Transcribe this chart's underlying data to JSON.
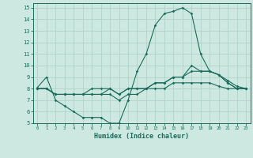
{
  "title": "",
  "xlabel": "Humidex (Indice chaleur)",
  "xlim": [
    -0.5,
    23.5
  ],
  "ylim": [
    5,
    15.4
  ],
  "yticks": [
    5,
    6,
    7,
    8,
    9,
    10,
    11,
    12,
    13,
    14,
    15
  ],
  "xticks": [
    0,
    1,
    2,
    3,
    4,
    5,
    6,
    7,
    8,
    9,
    10,
    11,
    12,
    13,
    14,
    15,
    16,
    17,
    18,
    19,
    20,
    21,
    22,
    23
  ],
  "background_color": "#cce8e0",
  "grid_color": "#aacfc6",
  "line_color": "#1a6b5a",
  "series": [
    {
      "x": [
        0,
        1,
        2,
        3,
        4,
        5,
        6,
        7,
        8,
        9,
        10,
        11,
        12,
        13,
        14,
        15,
        16,
        17,
        18,
        19,
        20,
        21,
        22,
        23
      ],
      "y": [
        8.1,
        9.0,
        7.0,
        6.5,
        6.0,
        5.5,
        5.5,
        5.5,
        5.0,
        5.0,
        7.0,
        9.5,
        11.0,
        13.5,
        14.5,
        14.7,
        15.0,
        14.5,
        11.0,
        9.5,
        9.2,
        8.5,
        8.0,
        8.0
      ]
    },
    {
      "x": [
        0,
        1,
        2,
        3,
        4,
        5,
        6,
        7,
        8,
        9,
        10,
        11,
        12,
        13,
        14,
        15,
        16,
        17,
        18,
        19,
        20,
        21,
        22,
        23
      ],
      "y": [
        8.0,
        8.0,
        7.5,
        7.5,
        7.5,
        7.5,
        7.5,
        7.5,
        8.0,
        7.5,
        8.0,
        8.0,
        8.0,
        8.5,
        8.5,
        9.0,
        9.0,
        9.5,
        9.5,
        9.5,
        9.2,
        8.7,
        8.2,
        8.0
      ]
    },
    {
      "x": [
        0,
        1,
        2,
        3,
        4,
        5,
        6,
        7,
        8,
        9,
        10,
        11,
        12,
        13,
        14,
        15,
        16,
        17,
        18,
        19,
        20,
        21,
        22,
        23
      ],
      "y": [
        8.0,
        8.0,
        7.5,
        7.5,
        7.5,
        7.5,
        8.0,
        8.0,
        8.0,
        7.5,
        8.0,
        8.0,
        8.0,
        8.5,
        8.5,
        9.0,
        9.0,
        10.0,
        9.5,
        9.5,
        9.2,
        8.5,
        8.0,
        8.0
      ]
    },
    {
      "x": [
        0,
        1,
        2,
        3,
        4,
        5,
        6,
        7,
        8,
        9,
        10,
        11,
        12,
        13,
        14,
        15,
        16,
        17,
        18,
        19,
        20,
        21,
        22,
        23
      ],
      "y": [
        8.0,
        8.0,
        7.5,
        7.5,
        7.5,
        7.5,
        7.5,
        7.5,
        7.5,
        7.0,
        7.5,
        7.5,
        8.0,
        8.0,
        8.0,
        8.5,
        8.5,
        8.5,
        8.5,
        8.5,
        8.2,
        8.0,
        8.0,
        8.0
      ]
    }
  ]
}
